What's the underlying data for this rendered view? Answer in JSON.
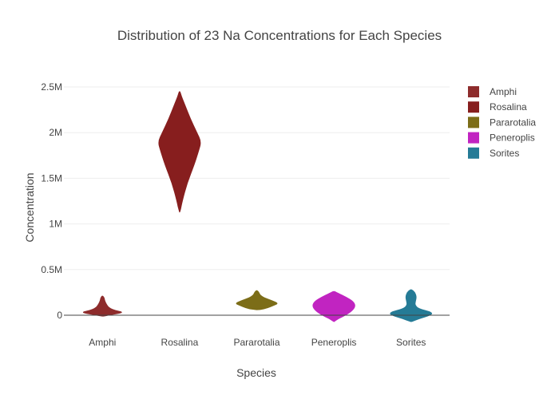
{
  "chart_data": {
    "type": "violin",
    "title": "Distribution of 23  Na Concentrations for Each Species",
    "xlabel": "Species",
    "ylabel": "Concentration",
    "categories": [
      "Amphi",
      "Rosalina",
      "Pararotalia",
      "Peneroplis",
      "Sorites"
    ],
    "ylim": [
      -80000,
      2600000
    ],
    "yticks": [
      0,
      500000,
      1000000,
      1500000,
      2000000,
      2500000
    ],
    "ytick_labels": [
      "0",
      "0.5M",
      "1M",
      "1.5M",
      "2M",
      "2.5M"
    ],
    "grid": true,
    "legend_position": "top-right",
    "series": [
      {
        "name": "Amphi",
        "color": "#8e2c2c",
        "profile": [
          [
            -10000,
            0.08
          ],
          [
            10000,
            0.45
          ],
          [
            30000,
            1.0
          ],
          [
            50000,
            0.6
          ],
          [
            80000,
            0.3
          ],
          [
            120000,
            0.18
          ],
          [
            160000,
            0.1
          ],
          [
            190000,
            0.08
          ],
          [
            210000,
            0.02
          ]
        ]
      },
      {
        "name": "Rosalina",
        "color": "#871e1e",
        "profile": [
          [
            1130000,
            0.02
          ],
          [
            1250000,
            0.12
          ],
          [
            1450000,
            0.35
          ],
          [
            1650000,
            0.68
          ],
          [
            1800000,
            0.88
          ],
          [
            1900000,
            1.0
          ],
          [
            2000000,
            0.8
          ],
          [
            2150000,
            0.5
          ],
          [
            2300000,
            0.25
          ],
          [
            2400000,
            0.08
          ],
          [
            2450000,
            0.02
          ]
        ]
      },
      {
        "name": "Pararotalia",
        "color": "#7c6d18",
        "profile": [
          [
            60000,
            0.15
          ],
          [
            80000,
            0.5
          ],
          [
            110000,
            0.8
          ],
          [
            130000,
            1.0
          ],
          [
            160000,
            0.7
          ],
          [
            190000,
            0.35
          ],
          [
            220000,
            0.15
          ],
          [
            250000,
            0.1
          ],
          [
            270000,
            0.02
          ]
        ]
      },
      {
        "name": "Peneroplis",
        "color": "#c124c1",
        "profile": [
          [
            -70000,
            0.02
          ],
          [
            -40000,
            0.18
          ],
          [
            0,
            0.55
          ],
          [
            50000,
            0.85
          ],
          [
            100000,
            1.0
          ],
          [
            150000,
            0.9
          ],
          [
            200000,
            0.55
          ],
          [
            240000,
            0.2
          ],
          [
            260000,
            0.03
          ]
        ]
      },
      {
        "name": "Sorites",
        "color": "#257b96",
        "profile": [
          [
            -70000,
            0.03
          ],
          [
            -40000,
            0.35
          ],
          [
            0,
            0.9
          ],
          [
            30000,
            1.0
          ],
          [
            70000,
            0.35
          ],
          [
            110000,
            0.18
          ],
          [
            150000,
            0.2
          ],
          [
            200000,
            0.25
          ],
          [
            250000,
            0.18
          ],
          [
            280000,
            0.03
          ]
        ]
      }
    ]
  }
}
